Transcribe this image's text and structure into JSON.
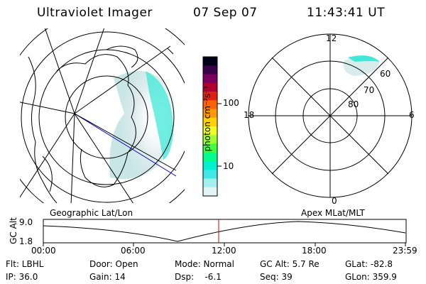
{
  "header": {
    "instrument": "Ultraviolet Imager",
    "date": "07 Sep 07",
    "time": "11:43:41 UT"
  },
  "colorbar": {
    "unit_label": "photon cm⁻²s⁻¹",
    "ticks": [
      "100",
      "10"
    ],
    "colors": [
      "#00001a",
      "#3a004a",
      "#7a0060",
      "#b00030",
      "#e02010",
      "#ff6000",
      "#ff9a00",
      "#ffd200",
      "#f0ff20",
      "#a0ff30",
      "#40ff40",
      "#00ff90",
      "#00f0d0",
      "#40e8e8",
      "#a0f0f0",
      "#e0f4f4"
    ]
  },
  "left_map": {
    "label": "Geographic Lat/Lon"
  },
  "polar_plot": {
    "label": "Apex  MLat/MLT",
    "mlt_labels": {
      "top": "12",
      "left": "18",
      "right": "6",
      "bottom": "0"
    },
    "lat_labels": [
      "60",
      "70",
      "80"
    ]
  },
  "altitude_plot": {
    "axis_label": "GC Alt",
    "y_ticks": [
      "9.0",
      "1.8"
    ],
    "x_ticks": [
      "00:00",
      "06:00",
      "12:00",
      "18:00",
      "23:59"
    ]
  },
  "info": {
    "filter": "Flt: LBHL",
    "door": "Door: Open",
    "mode": "Mode: Normal",
    "gc_alt": "GC Alt: 5.7 Re",
    "glat": "GLat: -82.8",
    "ip": "IP: 36.0",
    "gain": "Gain: 14",
    "dsp": "Dsp:    -6.1",
    "seq": "Seq: 39",
    "glon": "GLon: 359.9"
  }
}
